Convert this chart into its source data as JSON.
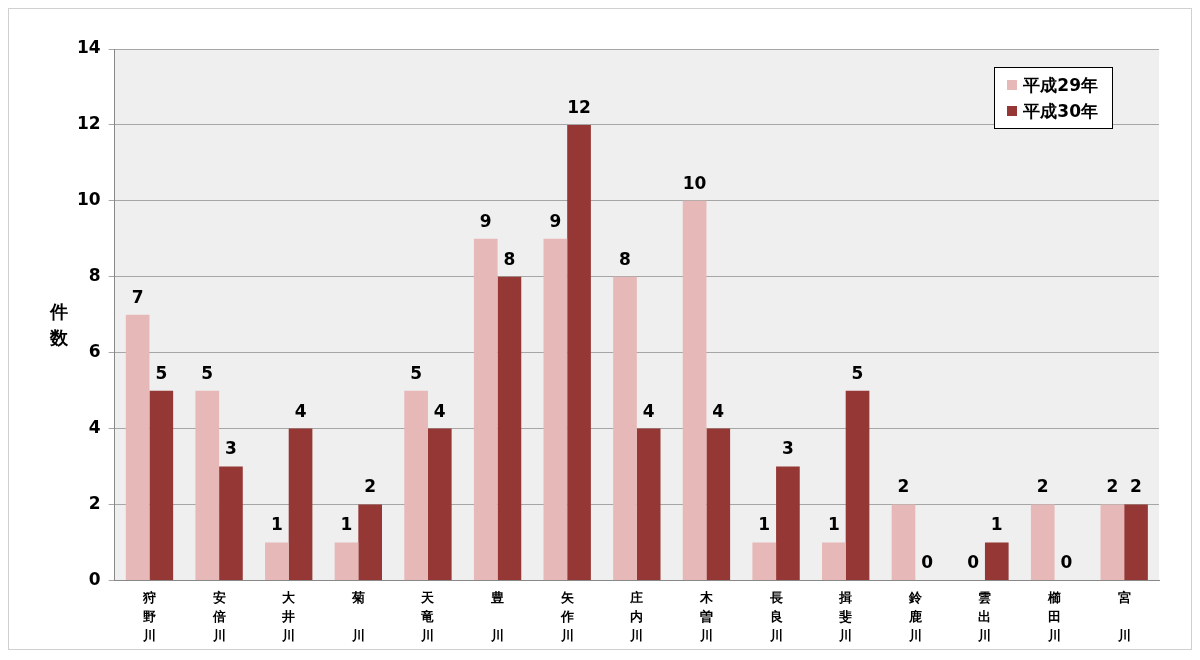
{
  "chart_data": {
    "type": "bar",
    "ylabel": "件数",
    "categories": [
      "狩野川",
      "安倍川",
      "大井川",
      "菊川",
      "天竜川",
      "豊川",
      "矢作川",
      "庄内川",
      "木曽川",
      "長良川",
      "揖斐川",
      "鈴鹿川",
      "雲出川",
      "櫛田川",
      "宮川"
    ],
    "series": [
      {
        "name": "平成29年",
        "color": "#e6b8b7",
        "values": [
          7,
          5,
          1,
          1,
          5,
          9,
          9,
          8,
          10,
          1,
          1,
          2,
          0,
          2,
          2
        ]
      },
      {
        "name": "平成30年",
        "color": "#953735",
        "values": [
          5,
          3,
          4,
          2,
          4,
          8,
          12,
          4,
          4,
          3,
          5,
          0,
          1,
          0,
          2
        ]
      }
    ],
    "ylim": [
      0,
      14
    ],
    "yticks": [
      0,
      2,
      4,
      6,
      8,
      10,
      12,
      14
    ],
    "grid": "y",
    "legend": "top right",
    "data_labels": true
  }
}
